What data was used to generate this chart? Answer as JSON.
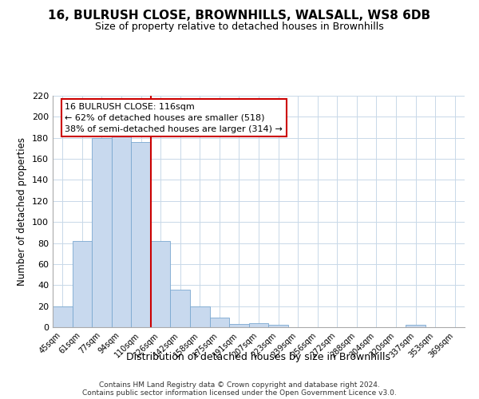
{
  "title": "16, BULRUSH CLOSE, BROWNHILLS, WALSALL, WS8 6DB",
  "subtitle": "Size of property relative to detached houses in Brownhills",
  "xlabel": "Distribution of detached houses by size in Brownhills",
  "ylabel": "Number of detached properties",
  "bin_labels": [
    "45sqm",
    "61sqm",
    "77sqm",
    "94sqm",
    "110sqm",
    "126sqm",
    "142sqm",
    "158sqm",
    "175sqm",
    "191sqm",
    "207sqm",
    "223sqm",
    "239sqm",
    "256sqm",
    "272sqm",
    "288sqm",
    "304sqm",
    "320sqm",
    "337sqm",
    "353sqm",
    "369sqm"
  ],
  "bar_heights": [
    20,
    82,
    180,
    181,
    176,
    82,
    36,
    20,
    9,
    3,
    4,
    2,
    0,
    0,
    0,
    0,
    0,
    0,
    2,
    0,
    0
  ],
  "bar_color": "#c8d9ee",
  "bar_edge_color": "#7aa8d0",
  "vline_x_index": 4,
  "vline_color": "#cc0000",
  "ylim": [
    0,
    220
  ],
  "yticks": [
    0,
    20,
    40,
    60,
    80,
    100,
    120,
    140,
    160,
    180,
    200,
    220
  ],
  "annotation_text_line1": "16 BULRUSH CLOSE: 116sqm",
  "annotation_text_line2": "← 62% of detached houses are smaller (518)",
  "annotation_text_line3": "38% of semi-detached houses are larger (314) →",
  "annotation_box_facecolor": "#ffffff",
  "annotation_border_color": "#cc0000",
  "footer_line1": "Contains HM Land Registry data © Crown copyright and database right 2024.",
  "footer_line2": "Contains public sector information licensed under the Open Government Licence v3.0.",
  "background_color": "#ffffff",
  "grid_color": "#c8d8e8",
  "title_fontsize": 11,
  "subtitle_fontsize": 9
}
